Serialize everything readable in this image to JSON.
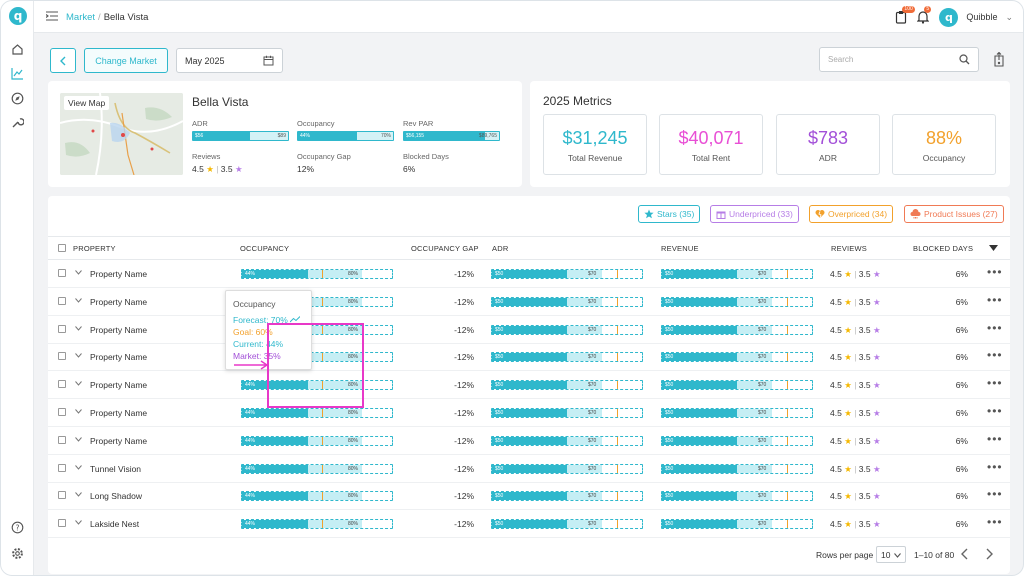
{
  "topbar": {
    "breadcrumb_link": "Market",
    "breadcrumb_sep": "/",
    "breadcrumb_current": "Bella Vista",
    "notif1_count": "100",
    "notif2_count": "5",
    "avatar_letter": "q",
    "user_name": "Quibble",
    "user_caret": "⌄"
  },
  "controls": {
    "change_market": "Change Market",
    "date": "May 2025",
    "search_placeholder": "Search"
  },
  "market": {
    "view_map": "View Map",
    "title": "Bella Vista",
    "adr_label": "ADR",
    "adr_min": "$56",
    "adr_max": "$89",
    "adr_fill": 0.6,
    "occupancy_label": "Occupancy",
    "occ_current": "44%",
    "occ_max": "70%",
    "occ_fill": 0.62,
    "revpar_label": "Rev PAR",
    "revpar_min": "$56,155",
    "revpar_max": "$89,765",
    "revpar_fill": 0.85,
    "reviews_label": "Reviews",
    "reviews_a": "4.5",
    "reviews_sep": "|",
    "reviews_b": "3.5",
    "occ_gap_label": "Occupancy Gap",
    "occ_gap_value": "12%",
    "blocked_label": "Blocked Days",
    "blocked_value": "6%"
  },
  "metrics": {
    "title": "2025 Metrics",
    "items": [
      {
        "value": "$31,245",
        "caption": "Total Revenue",
        "color": "#2fb8cc"
      },
      {
        "value": "$40,071",
        "caption": "Total Rent",
        "color": "#e84fd5"
      },
      {
        "value": "$783",
        "caption": "ADR",
        "color": "#a24fd8"
      },
      {
        "value": "88%",
        "caption": "Occupancy",
        "color": "#f2a12c"
      }
    ]
  },
  "filters": [
    {
      "label": "Stars (35)",
      "icon": "star-icon",
      "color": "#2fb8cc"
    },
    {
      "label": "Underpriced (33)",
      "icon": "gift-icon",
      "color": "#b67de6"
    },
    {
      "label": "Overpriced (34)",
      "icon": "broken-heart-icon",
      "color": "#f2a12c"
    },
    {
      "label": "Product Issues (27)",
      "icon": "cloud-alert-icon",
      "color": "#f07a55"
    }
  ],
  "columns": {
    "property": "PROPERTY",
    "occupancy": "OCCUPANCY",
    "occupancy_gap": "OCCUPANCY GAP",
    "adr": "ADR",
    "revenue": "REVENUE",
    "reviews": "REVIEWS",
    "blocked_days": "BLOCKED DAYS"
  },
  "row_common": {
    "occ_left": "44%",
    "occ_right": "80%",
    "money_left": "$50",
    "money_right": "$70",
    "gap": "-12%",
    "review_a": "4.5",
    "review_sep": "|",
    "review_b": "3.5",
    "blocked": "6%",
    "occ_current_frac": 0.44,
    "occ_forecast_frac": 0.8,
    "money_fill_frac": 0.5,
    "money_light_frac": 0.73
  },
  "rows": [
    {
      "name": "Property Name"
    },
    {
      "name": "Property Name"
    },
    {
      "name": "Property Name"
    },
    {
      "name": "Property Name"
    },
    {
      "name": "Property Name"
    },
    {
      "name": "Property Name"
    },
    {
      "name": "Property Name"
    },
    {
      "name": "Tunnel Vision"
    },
    {
      "name": "Long Shadow"
    },
    {
      "name": "Lakside Nest"
    }
  ],
  "tooltip": {
    "title": "Occupancy",
    "forecast": "Forecast: 70%",
    "goal": "Goal: 60%",
    "current": "Current: 44%",
    "market": "Market: 35%",
    "forecast_color": "#2fb8cc",
    "goal_color": "#f2a12c",
    "current_color": "#2fb8cc",
    "market_color": "#a24fd8"
  },
  "pagination": {
    "rows_per_page_label": "Rows per page",
    "rows_per_page": "10",
    "range": "1–10 of 80"
  }
}
